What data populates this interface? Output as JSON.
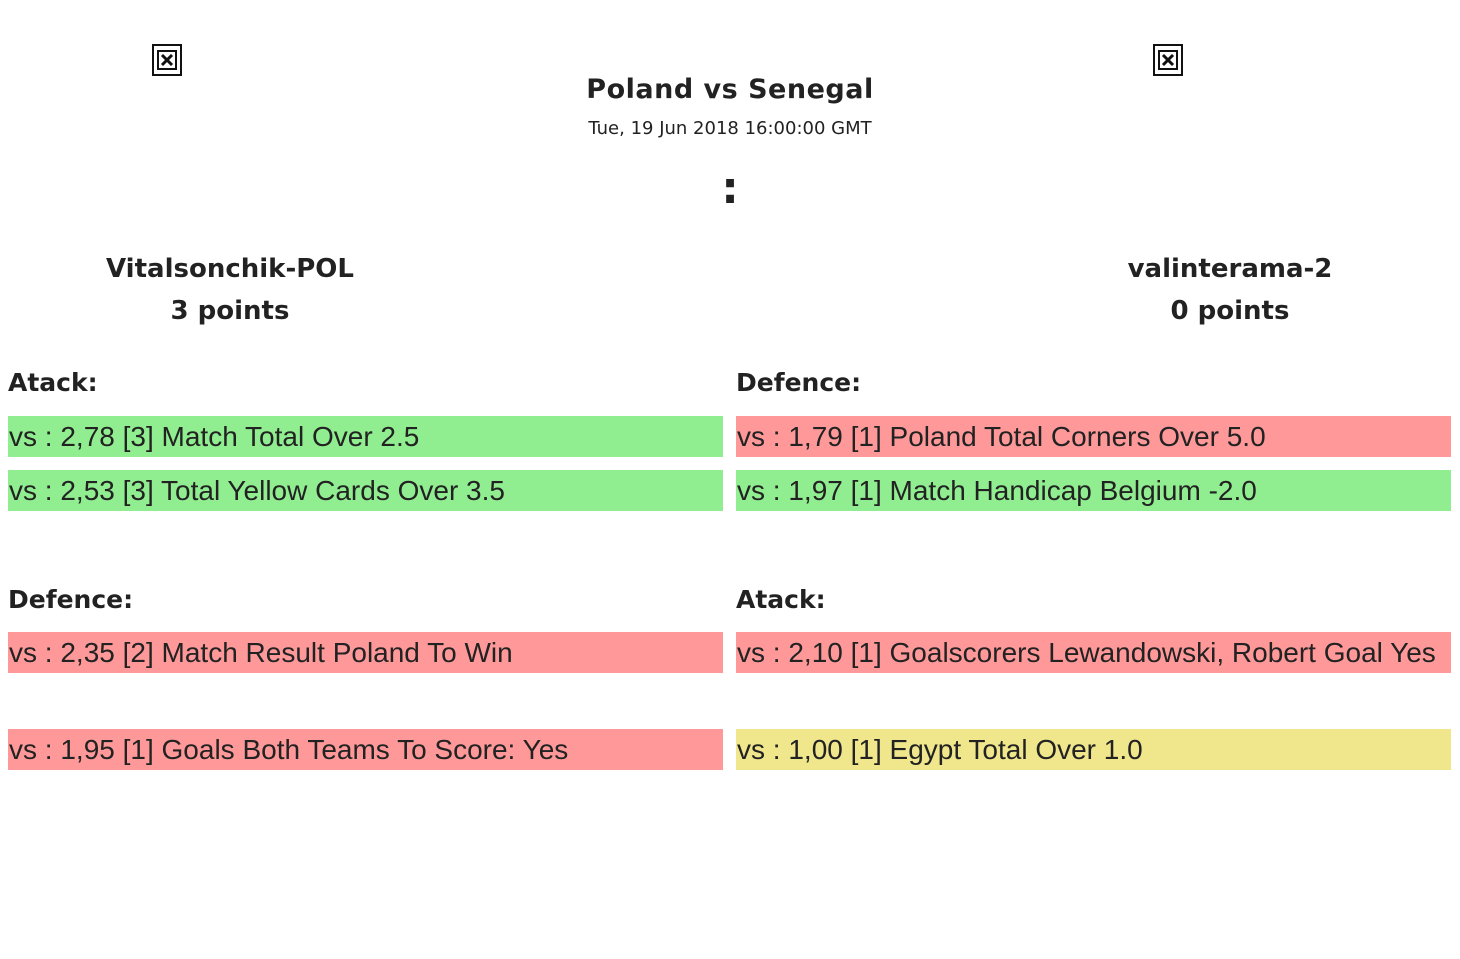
{
  "match": {
    "title": "Poland vs Senegal",
    "date": "Tue, 19 Jun 2018 16:00:00 GMT",
    "score_separator": ":"
  },
  "player_left": {
    "name": "Vitalsonchik-POL",
    "points": "3 points"
  },
  "player_right": {
    "name": "valinterama-2",
    "points": "0 points"
  },
  "left_top": {
    "heading": "Atack:",
    "bets": [
      {
        "text": "vs : 2,78 [3] Match Total Over 2.5",
        "status": "win"
      },
      {
        "text": "vs : 2,53 [3] Total Yellow Cards Over 3.5",
        "status": "win"
      }
    ]
  },
  "right_top": {
    "heading": "Defence:",
    "bets": [
      {
        "text": "vs : 1,79 [1] Poland Total Corners Over 5.0",
        "status": "lose"
      },
      {
        "text": "vs : 1,97 [1] Match Handicap Belgium -2.0",
        "status": "win"
      }
    ]
  },
  "left_bottom": {
    "heading": "Defence:",
    "bets": [
      {
        "text": "vs : 2,35 [2] Match Result Poland To Win",
        "status": "lose"
      },
      {
        "text": "vs : 1,95 [1] Goals Both Teams To Score: Yes",
        "status": "lose"
      }
    ]
  },
  "right_bottom": {
    "heading": "Atack:",
    "bets": [
      {
        "text": "vs : 2,10 [1] Goalscorers Lewandowski, Robert Goal Yes",
        "status": "lose"
      },
      {
        "text": "vs : 1,00 [1] Egypt Total Over 1.0",
        "status": "push"
      }
    ]
  },
  "colors": {
    "win": "#90ee90",
    "lose": "#ff9999",
    "push": "#f0e68c"
  },
  "icons": {
    "team_left_logo": "broken-image-icon",
    "team_right_logo": "broken-image-icon"
  }
}
